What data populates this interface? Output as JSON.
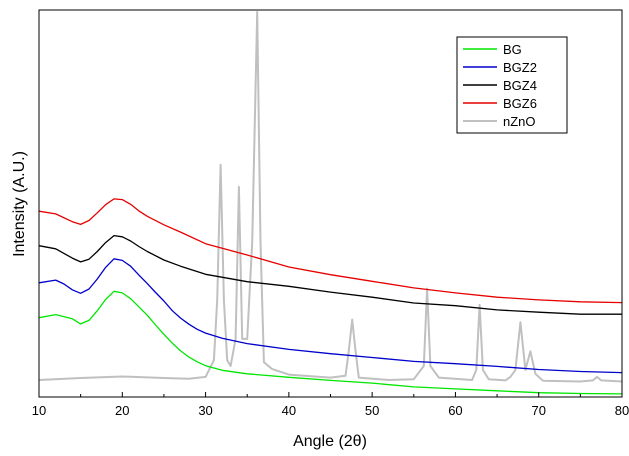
{
  "chart_data": {
    "type": "line",
    "xlabel": "Angle (2θ)",
    "ylabel": "Intensity (A.U.)",
    "xlim": [
      10,
      80
    ],
    "ylim": [
      0,
      100
    ],
    "x_ticks": [
      10,
      20,
      30,
      40,
      50,
      60,
      70,
      80
    ],
    "y_ticks_shown": false,
    "grid": false,
    "legend_position": "top-right",
    "legend_order": [
      "BG",
      "BGZ2",
      "BGZ4",
      "BGZ6",
      "nZnO"
    ],
    "series": [
      {
        "name": "BG",
        "color": "#00e600",
        "points": [
          [
            10,
            20.5
          ],
          [
            12,
            21.3
          ],
          [
            14,
            20.2
          ],
          [
            15,
            18.9
          ],
          [
            16,
            19.8
          ],
          [
            17,
            22.3
          ],
          [
            18,
            25.2
          ],
          [
            19,
            27.3
          ],
          [
            20,
            26.9
          ],
          [
            21,
            25.4
          ],
          [
            22,
            23.3
          ],
          [
            23,
            21.1
          ],
          [
            24,
            18.6
          ],
          [
            25,
            16.2
          ],
          [
            26,
            13.9
          ],
          [
            27,
            11.9
          ],
          [
            28,
            10.3
          ],
          [
            29,
            9.1
          ],
          [
            30,
            8.1
          ],
          [
            32,
            6.9
          ],
          [
            35,
            6.0
          ],
          [
            40,
            5.1
          ],
          [
            45,
            4.3
          ],
          [
            50,
            3.6
          ],
          [
            55,
            2.6
          ],
          [
            60,
            2.1
          ],
          [
            65,
            1.6
          ],
          [
            70,
            1.1
          ],
          [
            75,
            0.9
          ],
          [
            80,
            0.8
          ]
        ]
      },
      {
        "name": "BGZ2",
        "color": "#0000cc",
        "points": [
          [
            10,
            29.5
          ],
          [
            12,
            30.2
          ],
          [
            13,
            29.2
          ],
          [
            14,
            27.7
          ],
          [
            15,
            26.8
          ],
          [
            16,
            27.9
          ],
          [
            17,
            30.5
          ],
          [
            18,
            33.5
          ],
          [
            19,
            35.7
          ],
          [
            20,
            35.3
          ],
          [
            21,
            33.8
          ],
          [
            22,
            31.5
          ],
          [
            23,
            29.3
          ],
          [
            24,
            27.0
          ],
          [
            25,
            24.8
          ],
          [
            26,
            22.3
          ],
          [
            27,
            20.4
          ],
          [
            28,
            18.8
          ],
          [
            29,
            17.5
          ],
          [
            30,
            16.5
          ],
          [
            32,
            15.2
          ],
          [
            35,
            13.8
          ],
          [
            40,
            12.3
          ],
          [
            45,
            11.2
          ],
          [
            50,
            10.2
          ],
          [
            55,
            9.2
          ],
          [
            60,
            8.6
          ],
          [
            65,
            7.9
          ],
          [
            70,
            7.1
          ],
          [
            75,
            6.6
          ],
          [
            80,
            6.3
          ]
        ]
      },
      {
        "name": "BGZ4",
        "color": "#000000",
        "points": [
          [
            10,
            39.1
          ],
          [
            12,
            38.3
          ],
          [
            14,
            35.9
          ],
          [
            15,
            34.9
          ],
          [
            16,
            35.6
          ],
          [
            17,
            37.6
          ],
          [
            18,
            39.9
          ],
          [
            19,
            41.7
          ],
          [
            20,
            41.4
          ],
          [
            21,
            40.3
          ],
          [
            22,
            38.9
          ],
          [
            23,
            37.6
          ],
          [
            25,
            35.4
          ],
          [
            27,
            33.8
          ],
          [
            30,
            31.7
          ],
          [
            35,
            29.8
          ],
          [
            40,
            28.6
          ],
          [
            45,
            27.1
          ],
          [
            50,
            25.8
          ],
          [
            55,
            24.3
          ],
          [
            60,
            23.6
          ],
          [
            65,
            22.5
          ],
          [
            70,
            21.9
          ],
          [
            75,
            21.4
          ],
          [
            80,
            21.4
          ]
        ]
      },
      {
        "name": "BGZ6",
        "color": "#e60000",
        "points": [
          [
            10,
            48.0
          ],
          [
            12,
            47.3
          ],
          [
            14,
            45.3
          ],
          [
            15,
            44.6
          ],
          [
            16,
            45.6
          ],
          [
            17,
            47.6
          ],
          [
            18,
            49.7
          ],
          [
            19,
            51.2
          ],
          [
            20,
            51.0
          ],
          [
            21,
            49.8
          ],
          [
            22,
            48.1
          ],
          [
            23,
            46.7
          ],
          [
            25,
            44.5
          ],
          [
            27,
            42.6
          ],
          [
            30,
            39.6
          ],
          [
            35,
            36.7
          ],
          [
            40,
            33.6
          ],
          [
            45,
            31.6
          ],
          [
            50,
            29.9
          ],
          [
            55,
            28.2
          ],
          [
            60,
            26.9
          ],
          [
            65,
            25.8
          ],
          [
            70,
            25.1
          ],
          [
            75,
            24.6
          ],
          [
            80,
            24.4
          ]
        ]
      },
      {
        "name": "nZnO",
        "color": "#c0c0c0",
        "points": [
          [
            10,
            4.4
          ],
          [
            15,
            4.9
          ],
          [
            20,
            5.3
          ],
          [
            25,
            4.9
          ],
          [
            28,
            4.7
          ],
          [
            30,
            5.2
          ],
          [
            31,
            9.5
          ],
          [
            31.4,
            25
          ],
          [
            31.8,
            60.0
          ],
          [
            32.2,
            25
          ],
          [
            32.6,
            9.5
          ],
          [
            33,
            8.0
          ],
          [
            33.6,
            15
          ],
          [
            34.0,
            54.3
          ],
          [
            34.4,
            15
          ],
          [
            35,
            15.0
          ],
          [
            35.6,
            40
          ],
          [
            36.2,
            99.5
          ],
          [
            36.6,
            40
          ],
          [
            37,
            9.0
          ],
          [
            38,
            7.2
          ],
          [
            40,
            5.8
          ],
          [
            45,
            5.0
          ],
          [
            46.8,
            5.5
          ],
          [
            47.2,
            12
          ],
          [
            47.6,
            20.0
          ],
          [
            48,
            12
          ],
          [
            48.4,
            5.0
          ],
          [
            52,
            4.4
          ],
          [
            55,
            4.6
          ],
          [
            56.2,
            8
          ],
          [
            56.6,
            28.0
          ],
          [
            57,
            8
          ],
          [
            58,
            5.0
          ],
          [
            62,
            4.4
          ],
          [
            62.5,
            7
          ],
          [
            62.9,
            23.8
          ],
          [
            63.3,
            7
          ],
          [
            64,
            4.6
          ],
          [
            66,
            4.3
          ],
          [
            66.6,
            5.2
          ],
          [
            67.2,
            7
          ],
          [
            67.8,
            19.3
          ],
          [
            68.4,
            7
          ],
          [
            69,
            11.8
          ],
          [
            69.6,
            6
          ],
          [
            70.5,
            4.2
          ],
          [
            75,
            4.0
          ],
          [
            76.5,
            4.3
          ],
          [
            77,
            5.2
          ],
          [
            77.5,
            4.3
          ],
          [
            80,
            4.0
          ]
        ]
      }
    ]
  }
}
